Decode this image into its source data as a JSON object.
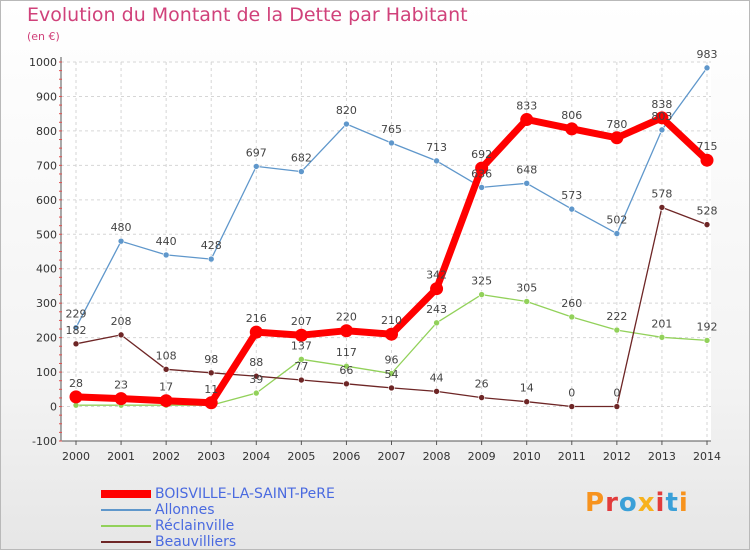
{
  "title": "Evolution du Montant de la Dette par Habitant",
  "subtitle": "(en €)",
  "chart_data": {
    "type": "line",
    "title": "Evolution du Montant de la Dette par Habitant",
    "subtitle": "(en €)",
    "x": [
      2000,
      2001,
      2002,
      2003,
      2004,
      2005,
      2006,
      2007,
      2008,
      2009,
      2010,
      2011,
      2012,
      2013,
      2014
    ],
    "ylim": [
      -100,
      1000
    ],
    "yticks": [
      -100,
      0,
      100,
      200,
      300,
      400,
      500,
      600,
      700,
      800,
      900,
      1000
    ],
    "grid": true,
    "legend_position": "bottom-left",
    "series": [
      {
        "name": "BOISVILLE-LA-SAINT-PeRE",
        "color": "#ff0000",
        "values": [
          28,
          23,
          17,
          11,
          216,
          207,
          220,
          210,
          342,
          692,
          833,
          806,
          780,
          838,
          715
        ],
        "labels": [
          "28",
          "23",
          "17",
          "11",
          "216",
          "207",
          "220",
          "210",
          "342",
          "692",
          "833",
          "806",
          "780",
          "838",
          "715"
        ]
      },
      {
        "name": "Allonnes",
        "color": "#5f97cb",
        "values": [
          229,
          480,
          440,
          428,
          697,
          682,
          820,
          765,
          713,
          636,
          648,
          573,
          502,
          803,
          983
        ],
        "labels": [
          "229",
          "480",
          "440",
          "428",
          "697",
          "682",
          "820",
          "765",
          "713",
          "636",
          "648",
          "573",
          "502",
          "803",
          "983"
        ]
      },
      {
        "name": "Réclainville",
        "color": "#92d15a",
        "values": [
          4,
          4,
          4,
          4,
          39,
          137,
          117,
          96,
          243,
          325,
          305,
          260,
          222,
          201,
          192
        ],
        "labels": [
          "",
          "",
          "",
          "",
          "39",
          "137",
          "117",
          "96",
          "243",
          "325",
          "305",
          "260",
          "222",
          "201",
          "192"
        ]
      },
      {
        "name": "Beauvilliers",
        "color": "#6e2626",
        "values": [
          182,
          208,
          108,
          98,
          88,
          77,
          66,
          54,
          44,
          26,
          14,
          0,
          0,
          578,
          528
        ],
        "labels": [
          "182",
          "208",
          "108",
          "98",
          "88",
          "77",
          "66",
          "54",
          "44",
          "26",
          "14",
          "0",
          "0",
          "578",
          "528"
        ]
      }
    ]
  },
  "logo": {
    "text": "Proxiti",
    "colors": [
      "#f7931e",
      "#e23c3c",
      "#3aa0d8",
      "#f7b21e",
      "#e23c3c",
      "#3aa0d8",
      "#f7931e"
    ]
  }
}
